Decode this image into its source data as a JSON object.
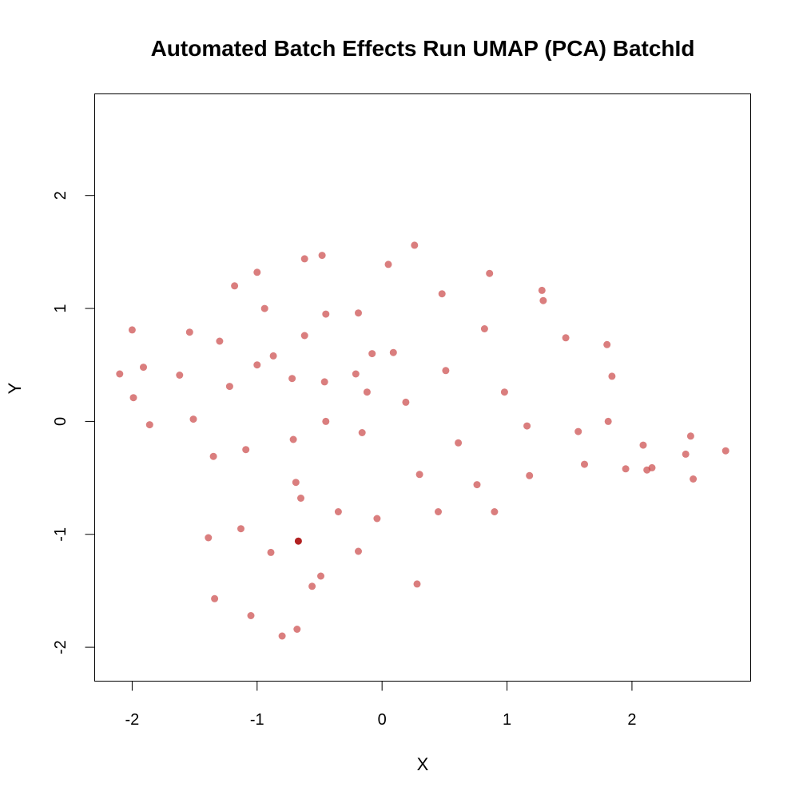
{
  "chart_data": {
    "type": "scatter",
    "title": "Automated Batch Effects Run UMAP (PCA) BatchId",
    "xlabel": "X",
    "ylabel": "Y",
    "xlim": [
      -2.3,
      2.95
    ],
    "ylim": [
      -2.3,
      2.9
    ],
    "xticks": [
      -2,
      -1,
      0,
      1,
      2
    ],
    "yticks": [
      -2,
      -1,
      0,
      1,
      2
    ],
    "point_color": "#cc4c4c",
    "highlight_color": "#b22222",
    "points": [
      {
        "x": -2.1,
        "y": 0.42
      },
      {
        "x": -2.0,
        "y": 0.81
      },
      {
        "x": -1.99,
        "y": 0.21
      },
      {
        "x": -1.91,
        "y": 0.48
      },
      {
        "x": -1.86,
        "y": -0.03
      },
      {
        "x": -1.62,
        "y": 0.41
      },
      {
        "x": -1.54,
        "y": 0.79
      },
      {
        "x": -1.51,
        "y": 0.02
      },
      {
        "x": -1.3,
        "y": 0.71
      },
      {
        "x": -1.22,
        "y": 0.31
      },
      {
        "x": -1.18,
        "y": 1.2
      },
      {
        "x": -1.09,
        "y": -0.25
      },
      {
        "x": -1.0,
        "y": 1.32
      },
      {
        "x": -1.0,
        "y": 0.5
      },
      {
        "x": -0.94,
        "y": 1.0
      },
      {
        "x": -0.87,
        "y": 0.58
      },
      {
        "x": -0.72,
        "y": 0.38
      },
      {
        "x": -0.71,
        "y": -0.16
      },
      {
        "x": -0.62,
        "y": 1.44
      },
      {
        "x": -0.62,
        "y": 0.76
      },
      {
        "x": -0.48,
        "y": 1.47
      },
      {
        "x": -0.45,
        "y": 0.95
      },
      {
        "x": -0.46,
        "y": 0.35
      },
      {
        "x": -0.45,
        "y": 0.0
      },
      {
        "x": -0.21,
        "y": 0.42
      },
      {
        "x": -0.19,
        "y": 0.96
      },
      {
        "x": -0.12,
        "y": 0.26
      },
      {
        "x": -0.08,
        "y": 0.6
      },
      {
        "x": -0.16,
        "y": -0.1
      },
      {
        "x": 0.05,
        "y": 1.39
      },
      {
        "x": 0.09,
        "y": 0.61
      },
      {
        "x": 0.19,
        "y": 0.17
      },
      {
        "x": 0.26,
        "y": 1.56
      },
      {
        "x": 0.48,
        "y": 1.13
      },
      {
        "x": 0.51,
        "y": 0.45
      },
      {
        "x": 0.3,
        "y": -0.47
      },
      {
        "x": -0.69,
        "y": -0.54
      },
      {
        "x": -0.65,
        "y": -0.68
      },
      {
        "x": -1.35,
        "y": -0.31
      },
      {
        "x": -0.35,
        "y": -0.8
      },
      {
        "x": -0.04,
        "y": -0.86
      },
      {
        "x": -1.13,
        "y": -0.95
      },
      {
        "x": -1.39,
        "y": -1.03
      },
      {
        "x": -0.89,
        "y": -1.16
      },
      {
        "x": -0.19,
        "y": -1.15
      },
      {
        "x": -0.67,
        "y": -1.06,
        "highlight": true
      },
      {
        "x": -0.49,
        "y": -1.37
      },
      {
        "x": -0.56,
        "y": -1.46
      },
      {
        "x": -1.34,
        "y": -1.57
      },
      {
        "x": -1.05,
        "y": -1.72
      },
      {
        "x": -0.8,
        "y": -1.9
      },
      {
        "x": -0.68,
        "y": -1.84
      },
      {
        "x": 0.28,
        "y": -1.44
      },
      {
        "x": 0.45,
        "y": -0.8
      },
      {
        "x": 0.61,
        "y": -0.19
      },
      {
        "x": 0.76,
        "y": -0.56
      },
      {
        "x": 0.82,
        "y": 0.82
      },
      {
        "x": 0.86,
        "y": 1.31
      },
      {
        "x": 0.9,
        "y": -0.8
      },
      {
        "x": 0.98,
        "y": 0.26
      },
      {
        "x": 1.16,
        "y": -0.04
      },
      {
        "x": 1.18,
        "y": -0.48
      },
      {
        "x": 1.28,
        "y": 1.16
      },
      {
        "x": 1.29,
        "y": 1.07
      },
      {
        "x": 1.47,
        "y": 0.74
      },
      {
        "x": 1.57,
        "y": -0.09
      },
      {
        "x": 1.62,
        "y": -0.38
      },
      {
        "x": 1.8,
        "y": 0.68
      },
      {
        "x": 1.81,
        "y": 0.0
      },
      {
        "x": 1.84,
        "y": 0.4
      },
      {
        "x": 1.95,
        "y": -0.42
      },
      {
        "x": 2.09,
        "y": -0.21
      },
      {
        "x": 2.12,
        "y": -0.43
      },
      {
        "x": 2.16,
        "y": -0.41
      },
      {
        "x": 2.43,
        "y": -0.29
      },
      {
        "x": 2.47,
        "y": -0.13
      },
      {
        "x": 2.49,
        "y": -0.51
      },
      {
        "x": 2.75,
        "y": -0.26
      }
    ]
  }
}
